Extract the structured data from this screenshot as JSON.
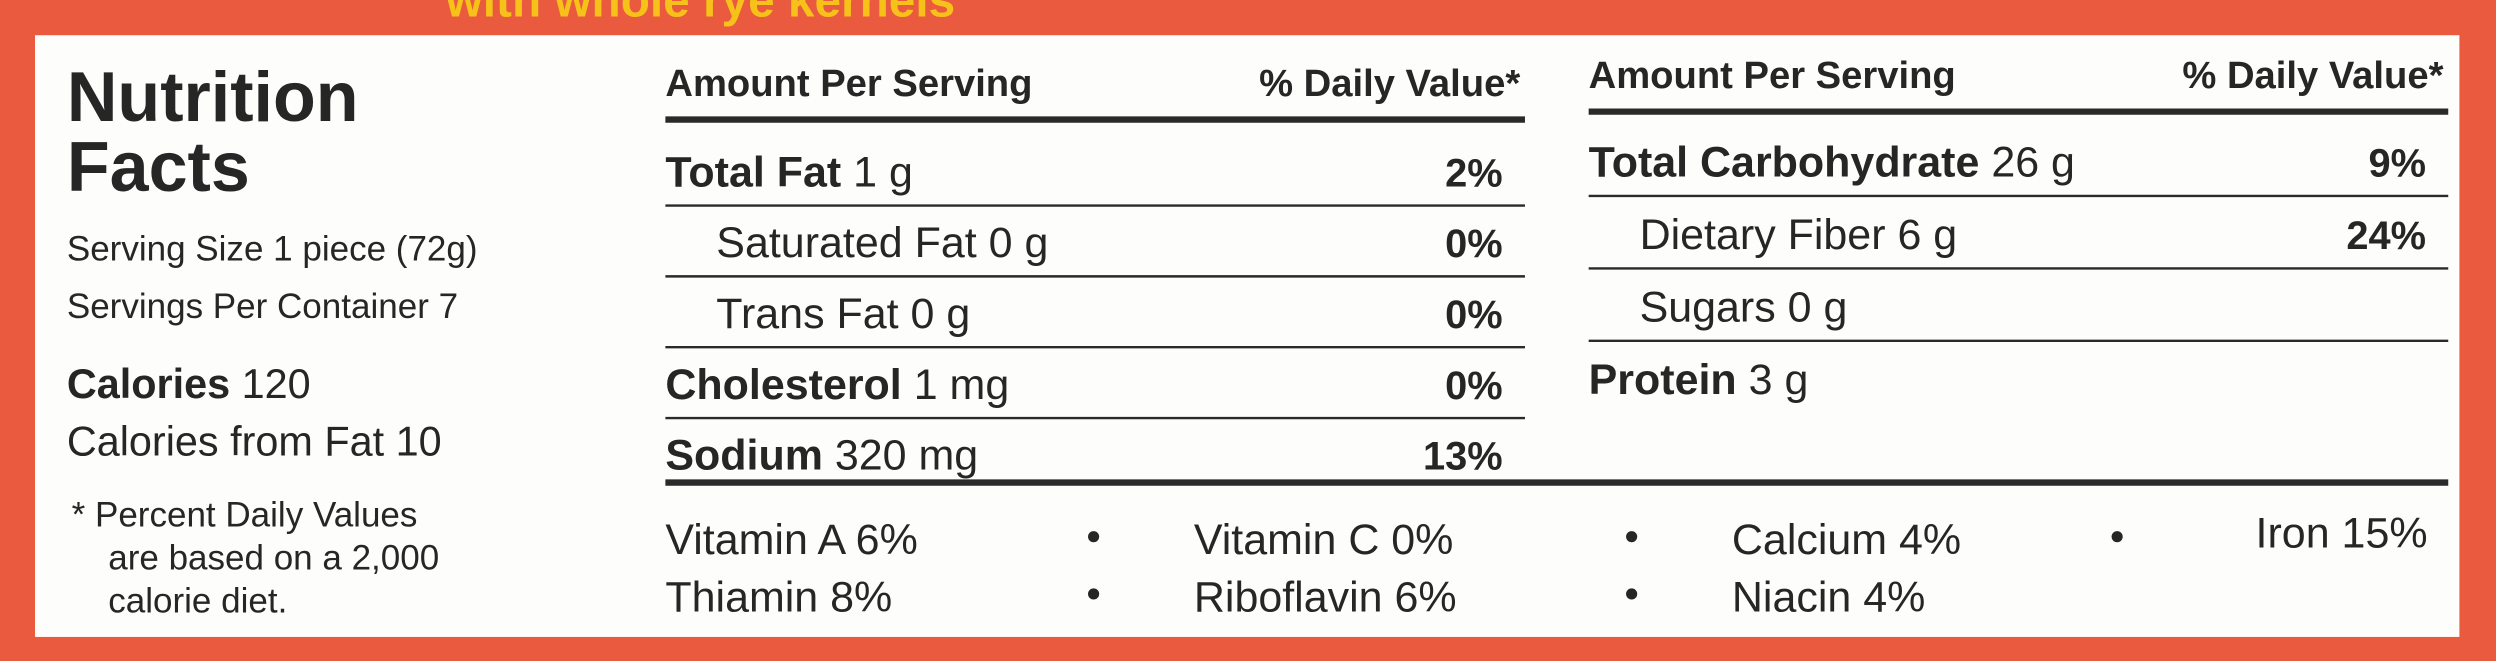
{
  "header": {
    "tagline": "with whole rye kernels"
  },
  "title": {
    "line1": "Nutrition",
    "line2": "Facts"
  },
  "serving": {
    "size": "Serving Size 1 piece (72g)",
    "per_container": "Servings Per Container 7"
  },
  "calories": {
    "label": "Calories",
    "amount": "120",
    "from_fat": "Calories from Fat 10"
  },
  "footnote": [
    "* Percent Daily Values",
    "are based on a 2,000",
    "calorie diet."
  ],
  "left_table": {
    "amount_header": "Amount Per Serving",
    "dv_header": "% Daily Value*",
    "rows": [
      {
        "name": "Total Fat",
        "amount": "1 g",
        "dv": "2%",
        "bold": true
      },
      {
        "name": "Saturated Fat",
        "amount": "0 g",
        "dv": "0%",
        "bold": false
      },
      {
        "name": "Trans Fat",
        "amount": "0 g",
        "dv": "0%",
        "bold": false
      },
      {
        "name": "Cholesterol",
        "amount": "1 mg",
        "dv": "0%",
        "bold": true
      },
      {
        "name": "Sodium",
        "amount": "320 mg",
        "dv": "13%",
        "bold": true
      }
    ]
  },
  "right_table": {
    "amount_header": "Amount Per Serving",
    "dv_header": "% Daily Value*",
    "rows": [
      {
        "name": "Total Carbohydrate",
        "amount": "26 g",
        "dv": "9%",
        "bold": true
      },
      {
        "name": "Dietary Fiber",
        "amount": "6 g",
        "dv": "24%",
        "bold": false
      },
      {
        "name": "Sugars",
        "amount": "0 g",
        "dv": null,
        "bold": false
      },
      {
        "name": "Protein",
        "amount": "3 g",
        "dv": null,
        "bold": true
      }
    ]
  },
  "vitamins": [
    [
      "Vitamin A 6%",
      "Vitamin C 0%",
      "Calcium 4%",
      "Iron 15%"
    ],
    [
      "Thiamin 8%",
      "Riboflavin 6%",
      "Niacin 4%"
    ]
  ]
}
